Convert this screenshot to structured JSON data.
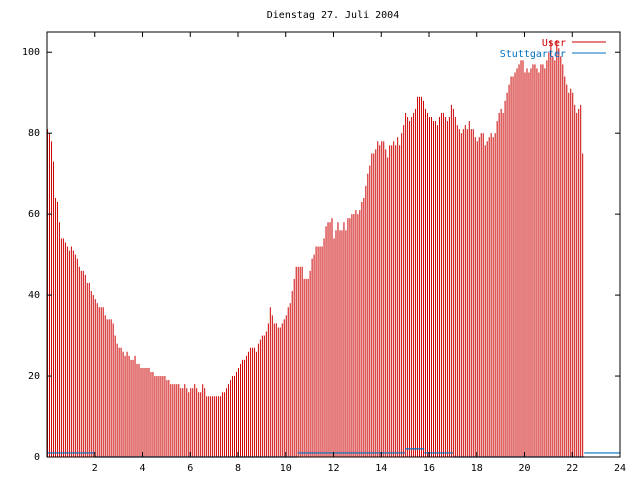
{
  "chart_data": {
    "type": "bar",
    "title": "Dienstag 27. Juli 2004",
    "xlabel": "",
    "ylabel": "",
    "xlim": [
      0,
      24
    ],
    "ylim": [
      0,
      105
    ],
    "x_ticks": [
      2,
      4,
      6,
      8,
      10,
      12,
      14,
      16,
      18,
      20,
      22,
      24
    ],
    "y_ticks": [
      0,
      20,
      40,
      60,
      80,
      100
    ],
    "grid": false,
    "legend_position": "top-right",
    "colors": {
      "User": "#cc0000",
      "Stuttgarter": "#0070c0",
      "axis": "#000000",
      "title": "#000000"
    },
    "series": [
      {
        "name": "User",
        "step_minutes": 5,
        "values": [
          81,
          80,
          78,
          73,
          64,
          63,
          58,
          54,
          54,
          53,
          52,
          51,
          52,
          51,
          50,
          49,
          47,
          46,
          46,
          45,
          43,
          43,
          41,
          40,
          39,
          38,
          37,
          37,
          37,
          35,
          34,
          34,
          34,
          33,
          30,
          28,
          27,
          27,
          26,
          25,
          26,
          25,
          24,
          24,
          25,
          23,
          23,
          22,
          22,
          22,
          22,
          22,
          21,
          21,
          20,
          20,
          20,
          20,
          20,
          20,
          19,
          19,
          18,
          18,
          18,
          18,
          18,
          17,
          17,
          18,
          17,
          16,
          17,
          17,
          18,
          17,
          16,
          16,
          18,
          17,
          15,
          15,
          15,
          15,
          15,
          15,
          15,
          15,
          16,
          16,
          17,
          18,
          19,
          20,
          20,
          21,
          22,
          23,
          24,
          24,
          25,
          26,
          27,
          27,
          27,
          26,
          28,
          29,
          30,
          30,
          31,
          33,
          37,
          35,
          33,
          33,
          32,
          32,
          33,
          34,
          35,
          37,
          38,
          41,
          44,
          47,
          47,
          47,
          47,
          44,
          44,
          44,
          46,
          49,
          50,
          52,
          52,
          52,
          52,
          54,
          57,
          58,
          58,
          59,
          54,
          56,
          58,
          56,
          56,
          58,
          56,
          59,
          59,
          60,
          60,
          61,
          60,
          61,
          63,
          64,
          67,
          70,
          72,
          75,
          75,
          76,
          78,
          77,
          78,
          78,
          76,
          74,
          77,
          77,
          78,
          77,
          79,
          77,
          80,
          82,
          85,
          84,
          83,
          84,
          85,
          86,
          89,
          89,
          89,
          88,
          86,
          85,
          84,
          84,
          83,
          83,
          82,
          84,
          85,
          85,
          84,
          83,
          84,
          87,
          86,
          84,
          82,
          81,
          80,
          81,
          82,
          81,
          83,
          81,
          81,
          79,
          78,
          79,
          80,
          80,
          77,
          78,
          79,
          80,
          79,
          80,
          83,
          85,
          86,
          85,
          88,
          90,
          92,
          94,
          94,
          95,
          96,
          97,
          98,
          98,
          95,
          96,
          95,
          96,
          97,
          97,
          96,
          95,
          97,
          97,
          96,
          98,
          100,
          103,
          99,
          98,
          103,
          101,
          99,
          97,
          94,
          92,
          90,
          91,
          90,
          87,
          85,
          86,
          87,
          75
        ]
      },
      {
        "name": "Stuttgarter",
        "segments": [
          [
            0,
            2,
            1
          ],
          [
            2,
            10.5,
            0
          ],
          [
            10.5,
            15,
            1
          ],
          [
            15,
            15.8,
            2
          ],
          [
            15.8,
            17,
            1
          ],
          [
            17,
            22.5,
            0
          ],
          [
            22.5,
            24,
            1
          ]
        ]
      }
    ]
  }
}
